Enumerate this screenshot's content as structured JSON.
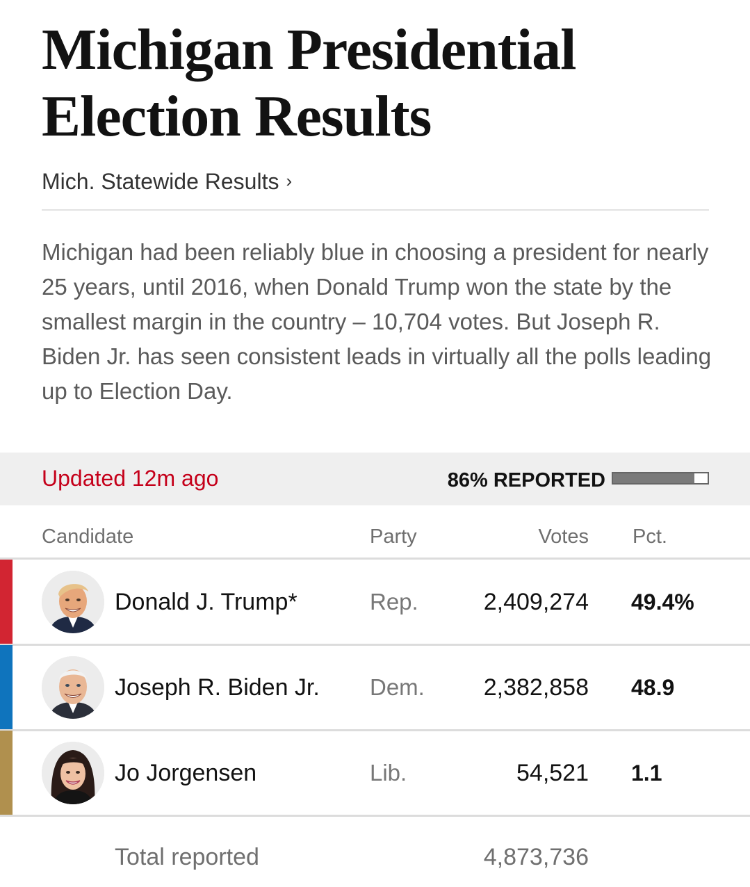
{
  "header": {
    "title": "Michigan Presidential Election Results",
    "statewide_link": "Mich. Statewide Results",
    "statewide_chevron": "›"
  },
  "summary": "Michigan had been reliably blue in choosing a president for nearly 25 years, until 2016, when Donald Trump won the state by the smallest margin in the country – 10,704 votes. But Joseph R. Biden Jr. has seen consistent leads in virtually all the polls leading up to Election Day.",
  "status": {
    "updated": "Updated 12m ago",
    "reported_label": "86% REPORTED",
    "reported_fraction": 0.86
  },
  "table": {
    "headers": {
      "candidate": "Candidate",
      "party": "Party",
      "votes": "Votes",
      "pct": "Pct."
    },
    "rows": [
      {
        "name": "Donald J. Trump*",
        "party": "Rep.",
        "votes": "2,409,274",
        "pct": "49.4%",
        "party_color": "#d22532",
        "avatar": "trump-avatar"
      },
      {
        "name": "Joseph R. Biden Jr.",
        "party": "Dem.",
        "votes": "2,382,858",
        "pct": "48.9",
        "party_color": "#0f74bd",
        "avatar": "biden-avatar"
      },
      {
        "name": "Jo Jorgensen",
        "party": "Lib.",
        "votes": "54,521",
        "pct": "1.1",
        "party_color": "#b0904e",
        "avatar": "jorgensen-avatar"
      }
    ],
    "total_label": "Total reported",
    "total_votes": "4,873,736"
  },
  "colors": {
    "updated_text": "#c5001a",
    "status_bg": "#efefef"
  }
}
